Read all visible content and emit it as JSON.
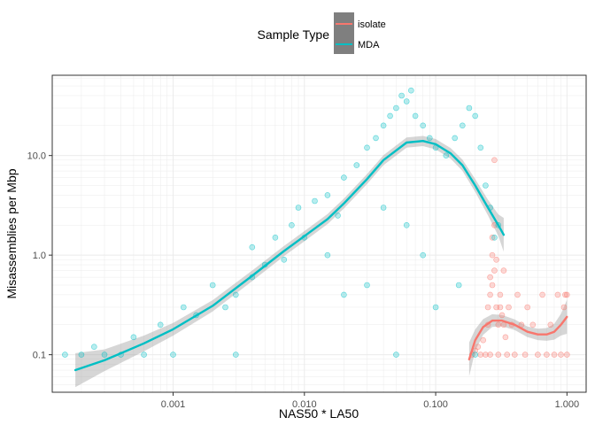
{
  "chart_data": {
    "type": "scatter",
    "xlabel": "NAS50 * LA50",
    "ylabel": "Misassemblies per Mbp",
    "x_scale": "log10",
    "y_scale": "log10",
    "xlim": [
      0.00012,
      1.4
    ],
    "ylim": [
      0.042,
      64
    ],
    "x_ticks": [
      0.001,
      0.01,
      0.1,
      1.0
    ],
    "x_tick_labels": [
      "0.001",
      "0.010",
      "0.100",
      "1.000"
    ],
    "y_ticks": [
      0.1,
      1.0,
      10.0
    ],
    "y_tick_labels": [
      "0.1",
      "1.0",
      "10.0"
    ],
    "grid": true,
    "legend": {
      "title": "Sample Type",
      "position": "top",
      "entries": [
        "isolate",
        "MDA"
      ]
    },
    "series": [
      {
        "name": "isolate",
        "color": "#F8766D",
        "points": [
          [
            0.19,
            0.1
          ],
          [
            0.2,
            0.11
          ],
          [
            0.21,
            0.12
          ],
          [
            0.22,
            0.1
          ],
          [
            0.23,
            0.14
          ],
          [
            0.24,
            0.1
          ],
          [
            0.25,
            0.2
          ],
          [
            0.25,
            0.3
          ],
          [
            0.26,
            0.1
          ],
          [
            0.26,
            0.4
          ],
          [
            0.27,
            0.5
          ],
          [
            0.27,
            1.0
          ],
          [
            0.28,
            0.7
          ],
          [
            0.28,
            2.0
          ],
          [
            0.29,
            0.9
          ],
          [
            0.29,
            0.3
          ],
          [
            0.3,
            0.1
          ],
          [
            0.3,
            0.2
          ],
          [
            0.31,
            0.4
          ],
          [
            0.31,
            0.3
          ],
          [
            0.32,
            0.25
          ],
          [
            0.33,
            0.2
          ],
          [
            0.34,
            0.15
          ],
          [
            0.35,
            0.1
          ],
          [
            0.36,
            0.3
          ],
          [
            0.38,
            0.2
          ],
          [
            0.4,
            0.1
          ],
          [
            0.42,
            0.4
          ],
          [
            0.45,
            0.2
          ],
          [
            0.48,
            0.1
          ],
          [
            0.5,
            0.3
          ],
          [
            0.55,
            0.2
          ],
          [
            0.6,
            0.1
          ],
          [
            0.65,
            0.4
          ],
          [
            0.7,
            0.1
          ],
          [
            0.75,
            0.2
          ],
          [
            0.8,
            0.1
          ],
          [
            0.85,
            0.4
          ],
          [
            0.9,
            0.1
          ],
          [
            0.95,
            0.3
          ],
          [
            0.97,
            0.4
          ],
          [
            1.0,
            0.1
          ],
          [
            1.0,
            0.4
          ],
          [
            0.27,
            1.5
          ],
          [
            0.28,
            9.0
          ],
          [
            0.26,
            0.6
          ],
          [
            0.33,
            0.7
          ]
        ],
        "trend": [
          [
            0.18,
            0.09
          ],
          [
            0.2,
            0.14
          ],
          [
            0.23,
            0.19
          ],
          [
            0.27,
            0.22
          ],
          [
            0.32,
            0.22
          ],
          [
            0.4,
            0.2
          ],
          [
            0.5,
            0.17
          ],
          [
            0.6,
            0.16
          ],
          [
            0.7,
            0.16
          ],
          [
            0.8,
            0.17
          ],
          [
            0.9,
            0.2
          ],
          [
            1.0,
            0.24
          ]
        ]
      },
      {
        "name": "MDA",
        "color": "#00BFC4",
        "points": [
          [
            0.00015,
            0.1
          ],
          [
            0.0002,
            0.1
          ],
          [
            0.00025,
            0.12
          ],
          [
            0.0003,
            0.1
          ],
          [
            0.0004,
            0.1
          ],
          [
            0.0005,
            0.15
          ],
          [
            0.0006,
            0.1
          ],
          [
            0.0008,
            0.2
          ],
          [
            0.001,
            0.1
          ],
          [
            0.0012,
            0.3
          ],
          [
            0.0015,
            0.25
          ],
          [
            0.002,
            0.5
          ],
          [
            0.0025,
            0.3
          ],
          [
            0.003,
            0.4
          ],
          [
            0.003,
            0.1
          ],
          [
            0.004,
            0.6
          ],
          [
            0.004,
            1.2
          ],
          [
            0.005,
            0.8
          ],
          [
            0.006,
            1.5
          ],
          [
            0.007,
            0.9
          ],
          [
            0.008,
            2.0
          ],
          [
            0.009,
            3.0
          ],
          [
            0.01,
            1.5
          ],
          [
            0.012,
            3.5
          ],
          [
            0.015,
            4.0
          ],
          [
            0.018,
            2.5
          ],
          [
            0.02,
            6.0
          ],
          [
            0.025,
            8.0
          ],
          [
            0.03,
            12.0
          ],
          [
            0.035,
            15.0
          ],
          [
            0.04,
            20.0
          ],
          [
            0.045,
            25.0
          ],
          [
            0.05,
            30.0
          ],
          [
            0.055,
            40.0
          ],
          [
            0.06,
            35.0
          ],
          [
            0.065,
            45.0
          ],
          [
            0.07,
            25.0
          ],
          [
            0.08,
            20.0
          ],
          [
            0.09,
            15.0
          ],
          [
            0.1,
            12.0
          ],
          [
            0.12,
            10.0
          ],
          [
            0.14,
            15.0
          ],
          [
            0.16,
            20.0
          ],
          [
            0.18,
            30.0
          ],
          [
            0.2,
            25.0
          ],
          [
            0.22,
            12.0
          ],
          [
            0.24,
            5.0
          ],
          [
            0.26,
            3.0
          ],
          [
            0.28,
            1.5
          ],
          [
            0.3,
            2.0
          ],
          [
            0.2,
            0.1
          ],
          [
            0.1,
            0.3
          ],
          [
            0.05,
            0.1
          ],
          [
            0.02,
            0.4
          ],
          [
            0.015,
            1.0
          ],
          [
            0.04,
            3.0
          ],
          [
            0.06,
            2.0
          ],
          [
            0.08,
            1.0
          ],
          [
            0.03,
            0.5
          ],
          [
            0.15,
            0.5
          ]
        ],
        "trend": [
          [
            0.00018,
            0.07
          ],
          [
            0.0003,
            0.088
          ],
          [
            0.0006,
            0.13
          ],
          [
            0.001,
            0.18
          ],
          [
            0.002,
            0.31
          ],
          [
            0.004,
            0.62
          ],
          [
            0.007,
            1.1
          ],
          [
            0.01,
            1.55
          ],
          [
            0.015,
            2.3
          ],
          [
            0.02,
            3.3
          ],
          [
            0.03,
            5.8
          ],
          [
            0.04,
            9.0
          ],
          [
            0.06,
            13.5
          ],
          [
            0.08,
            14.0
          ],
          [
            0.1,
            13.0
          ],
          [
            0.13,
            10.5
          ],
          [
            0.16,
            8.0
          ],
          [
            0.2,
            5.0
          ],
          [
            0.25,
            3.0
          ],
          [
            0.3,
            2.0
          ],
          [
            0.33,
            1.6
          ]
        ]
      }
    ]
  }
}
